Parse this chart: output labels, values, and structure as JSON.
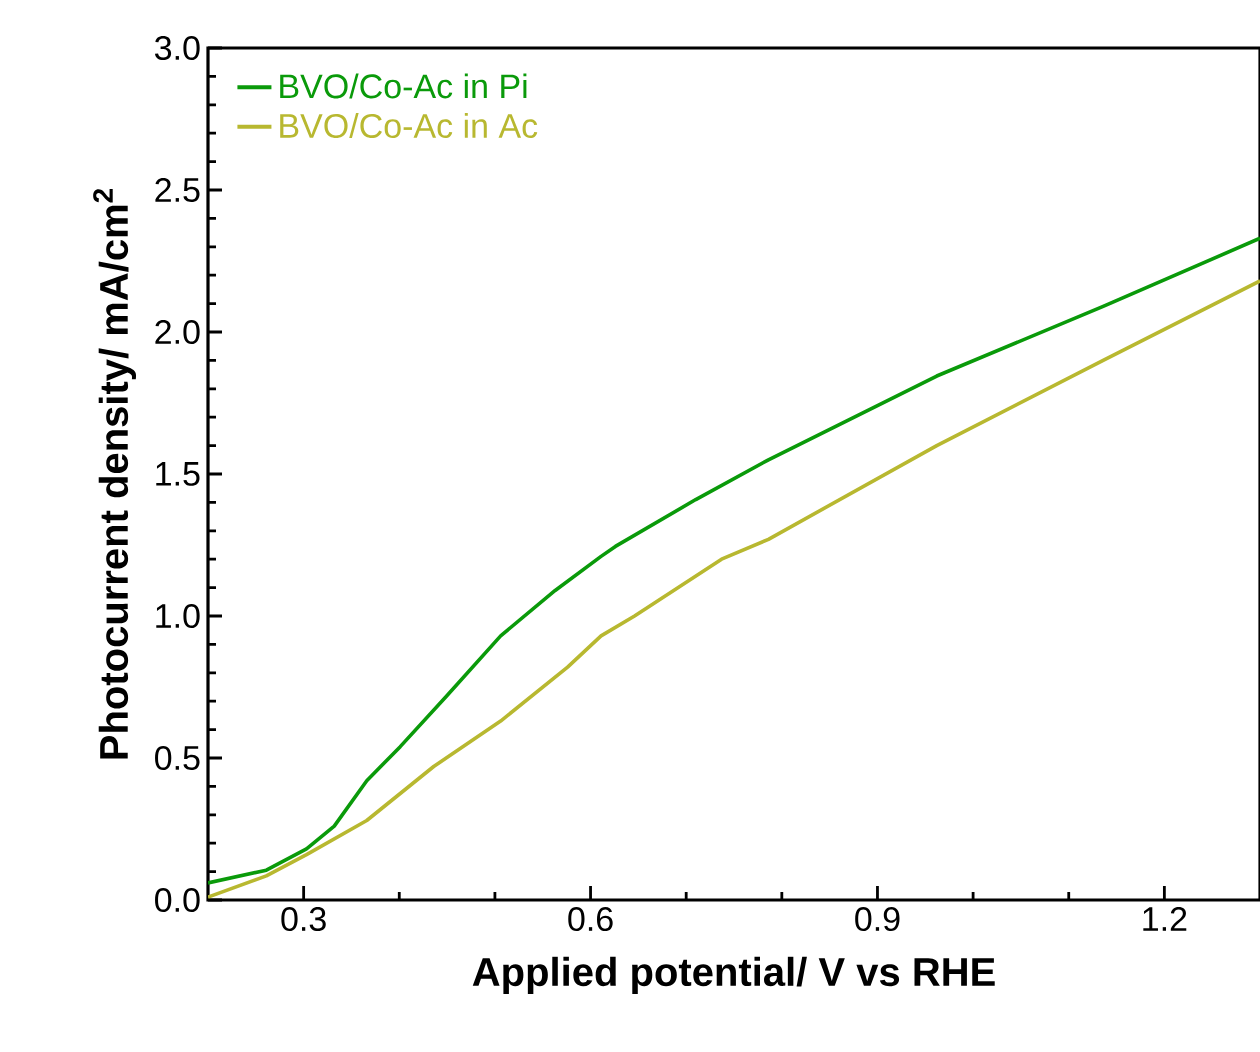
{
  "chart_data": {
    "type": "line",
    "xlabel": "Applied potential/ V vs RHE",
    "ylabel": "Photocurrent density/ mA/cm$^{2}$",
    "xlim": [
      0.2,
      1.3
    ],
    "ylim": [
      0,
      3.0
    ],
    "xticks": [
      0.3,
      0.6,
      0.9,
      1.2
    ],
    "yticks": [
      {
        "value": 0,
        "label": "0.0"
      },
      0.5,
      {
        "value": 1,
        "label": "1.0"
      },
      1.5,
      {
        "value": 2,
        "label": "2.0"
      },
      2.5,
      {
        "value": 3,
        "label": "3.0"
      }
    ],
    "legend": "top left",
    "marker": "none",
    "line_style": "solid",
    "grid": false,
    "series": [
      {
        "name": "BVO/Co-Ac in Pi",
        "color": "#0a9a0a",
        "x": [
          0.2,
          0.261,
          0.303,
          0.332,
          0.366,
          0.401,
          0.45,
          0.506,
          0.563,
          0.611,
          0.626,
          0.71,
          0.786,
          0.962,
          1.136,
          1.3
        ],
        "values": [
          0.06,
          0.105,
          0.18,
          0.26,
          0.42,
          0.54,
          0.72,
          0.93,
          1.09,
          1.21,
          1.245,
          1.41,
          1.55,
          1.845,
          2.09,
          2.33
        ]
      },
      {
        "name": "BVO/Co-Ac in Ac",
        "color": "#b8b830",
        "x": [
          0.2,
          0.261,
          0.303,
          0.366,
          0.436,
          0.506,
          0.576,
          0.611,
          0.646,
          0.737,
          0.786,
          0.962,
          1.136,
          1.3
        ],
        "values": [
          0.01,
          0.085,
          0.16,
          0.28,
          0.47,
          0.63,
          0.82,
          0.93,
          1.0,
          1.2,
          1.27,
          1.6,
          1.9,
          2.18
        ]
      }
    ]
  }
}
